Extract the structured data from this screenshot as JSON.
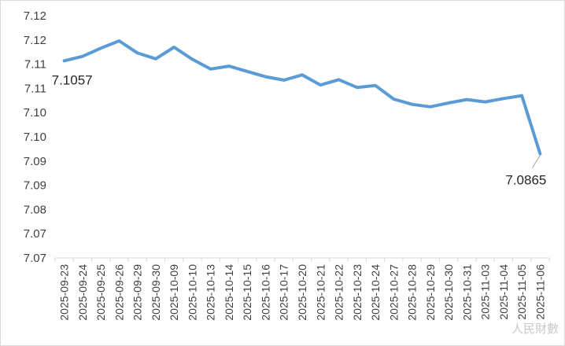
{
  "chart_data": {
    "type": "line",
    "title": "",
    "xlabel": "",
    "ylabel": "",
    "categories": [
      "2025-09-23",
      "2025-09-24",
      "2025-09-25",
      "2025-09-26",
      "2025-09-29",
      "2025-09-30",
      "2025-10-09",
      "2025-10-10",
      "2025-10-13",
      "2025-10-14",
      "2025-10-15",
      "2025-10-16",
      "2025-10-17",
      "2025-10-20",
      "2025-10-21",
      "2025-10-22",
      "2025-10-23",
      "2025-10-24",
      "2025-10-27",
      "2025-10-28",
      "2025-10-29",
      "2025-10-30",
      "2025-10-31",
      "2025-11-03",
      "2025-11-04",
      "2025-11-05",
      "2025-11-06"
    ],
    "series": [
      {
        "values": [
          7.1057,
          7.1066,
          7.1083,
          7.1098,
          7.1073,
          7.1061,
          7.1085,
          7.106,
          7.104,
          7.1046,
          7.1035,
          7.1024,
          7.1017,
          7.1028,
          7.1007,
          7.1018,
          7.1002,
          7.1006,
          7.0978,
          7.0967,
          7.0962,
          7.097,
          7.0977,
          7.0972,
          7.0979,
          7.0985,
          7.0865
        ]
      }
    ],
    "y_tick_labels": [
      "7.07",
      "7.07",
      "7.08",
      "7.09",
      "7.09",
      "7.10",
      "7.10",
      "7.11",
      "7.11",
      "7.12",
      "7.12"
    ],
    "ylim": [
      7.065,
      7.115
    ],
    "grid": false,
    "legend": "none",
    "line_color": "#5B9BD5",
    "annotations": [
      {
        "index": 0,
        "text": "7.1057"
      },
      {
        "index": 26,
        "text": "7.0865"
      }
    ]
  },
  "watermark": "人民財數"
}
